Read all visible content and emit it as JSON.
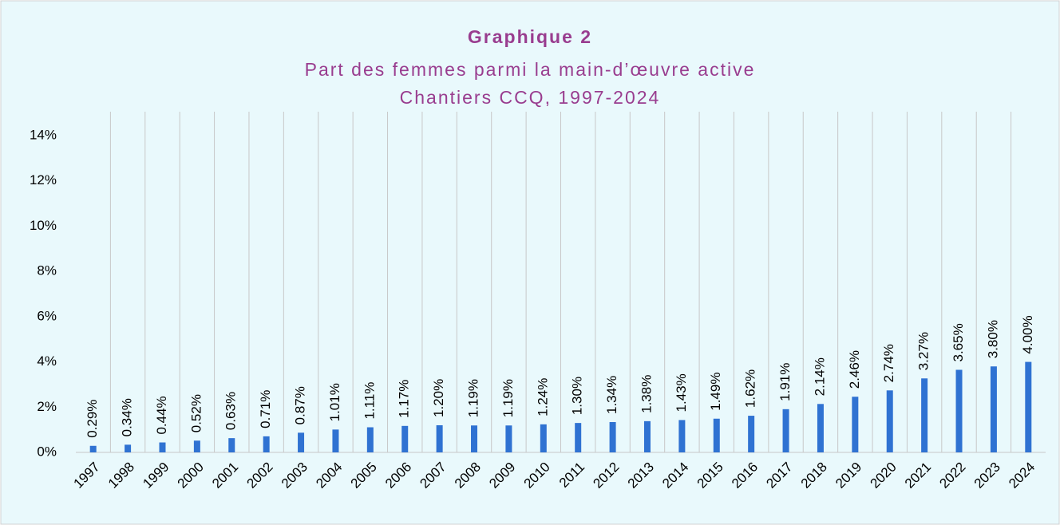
{
  "chart_data": {
    "type": "bar",
    "title": "Graphique 2",
    "subtitle": [
      "Part des femmes parmi la main-d’œuvre active",
      "Chantiers CCQ, 1997-2024"
    ],
    "categories": [
      "1997",
      "1998",
      "1999",
      "2000",
      "2001",
      "2002",
      "2003",
      "2004",
      "2005",
      "2006",
      "2007",
      "2008",
      "2009",
      "2010",
      "2011",
      "2012",
      "2013",
      "2014",
      "2015",
      "2016",
      "2017",
      "2018",
      "2019",
      "2020",
      "2021",
      "2022",
      "2023",
      "2024"
    ],
    "values": [
      0.29,
      0.34,
      0.44,
      0.52,
      0.63,
      0.71,
      0.87,
      1.01,
      1.11,
      1.17,
      1.2,
      1.19,
      1.19,
      1.24,
      1.3,
      1.34,
      1.38,
      1.43,
      1.49,
      1.62,
      1.91,
      2.14,
      2.46,
      2.74,
      3.27,
      3.65,
      3.8,
      4.0
    ],
    "value_labels": [
      "0.29%",
      "0.34%",
      "0.44%",
      "0.52%",
      "0.63%",
      "0.71%",
      "0.87%",
      "1.01%",
      "1.11%",
      "1.17%",
      "1.20%",
      "1.19%",
      "1.19%",
      "1.24%",
      "1.30%",
      "1.34%",
      "1.38%",
      "1.43%",
      "1.49%",
      "1.62%",
      "1.91%",
      "2.14%",
      "2.46%",
      "2.74%",
      "3.27%",
      "3.65%",
      "3.80%",
      "4.00%"
    ],
    "color": "#2f72d2",
    "ylim": [
      0,
      14
    ],
    "yticks": [
      {
        "value": 0,
        "label": "0%"
      },
      {
        "value": 2,
        "label": "2%"
      },
      {
        "value": 4,
        "label": "4%"
      },
      {
        "value": 6,
        "label": "6%"
      },
      {
        "value": 8,
        "label": "8%"
      },
      {
        "value": 10,
        "label": "10%"
      },
      {
        "value": 12,
        "label": "12%"
      },
      {
        "value": 14,
        "label": "14%"
      }
    ],
    "grid": true
  }
}
